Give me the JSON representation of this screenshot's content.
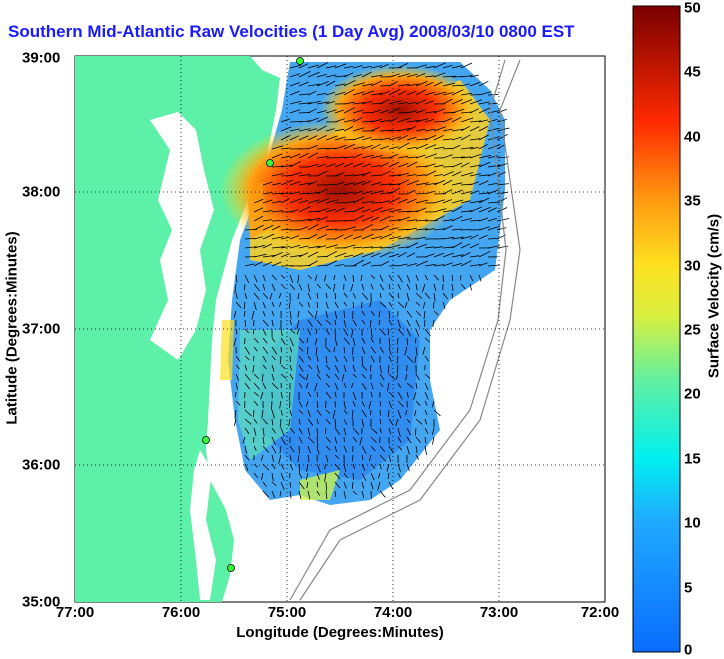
{
  "title": "Southern Mid-Atlantic Raw Velocities (1 Day Avg) 2008/03/10 0800 EST",
  "xlabel": "Longitude (Degrees:Minutes)",
  "ylabel": "Latitude (Degrees:Minutes)",
  "xticks": [
    "77:00",
    "76:00",
    "75:00",
    "74:00",
    "73:00",
    "72:00"
  ],
  "yticks": [
    "39:00",
    "38:00",
    "37:00",
    "36:00",
    "35:00"
  ],
  "colorbar": {
    "label": "Surface Velocity (cm/s)",
    "ticks": [
      "50",
      "45",
      "40",
      "35",
      "30",
      "25",
      "20",
      "15",
      "10",
      "5",
      "0"
    ],
    "min": 0,
    "max": 50
  },
  "colors": {
    "land": "#5cf0a8",
    "water": "#ffffff",
    "title": "#1a1aff",
    "station": "#33ff33"
  }
}
